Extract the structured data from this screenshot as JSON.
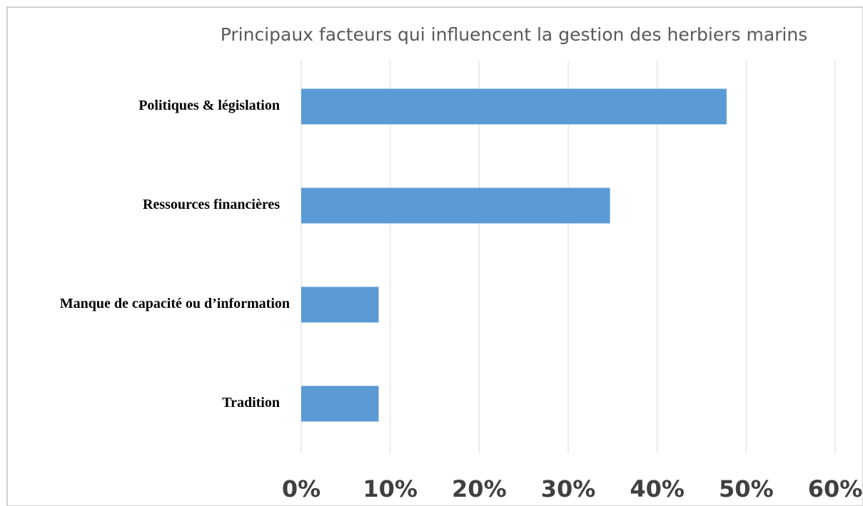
{
  "chart_data": {
    "type": "bar",
    "orientation": "horizontal",
    "title": "Principaux facteurs qui influencent la gestion des herbiers marins",
    "categories": [
      "Politiques & législation",
      "Ressources financières",
      "Manque de capacité ou d’information",
      "Tradition"
    ],
    "values": [
      47.8,
      34.7,
      8.7,
      8.7
    ],
    "color": "#5b9bd5",
    "xlim": [
      0,
      60
    ],
    "xticks": [
      {
        "value": 0,
        "label": "0%"
      },
      {
        "value": 10,
        "label": "10%"
      },
      {
        "value": 20,
        "label": "20%"
      },
      {
        "value": 30,
        "label": "30%"
      },
      {
        "value": 40,
        "label": "40%"
      },
      {
        "value": 50,
        "label": "50%"
      },
      {
        "value": 60,
        "label": "60%"
      }
    ],
    "grid": true
  }
}
